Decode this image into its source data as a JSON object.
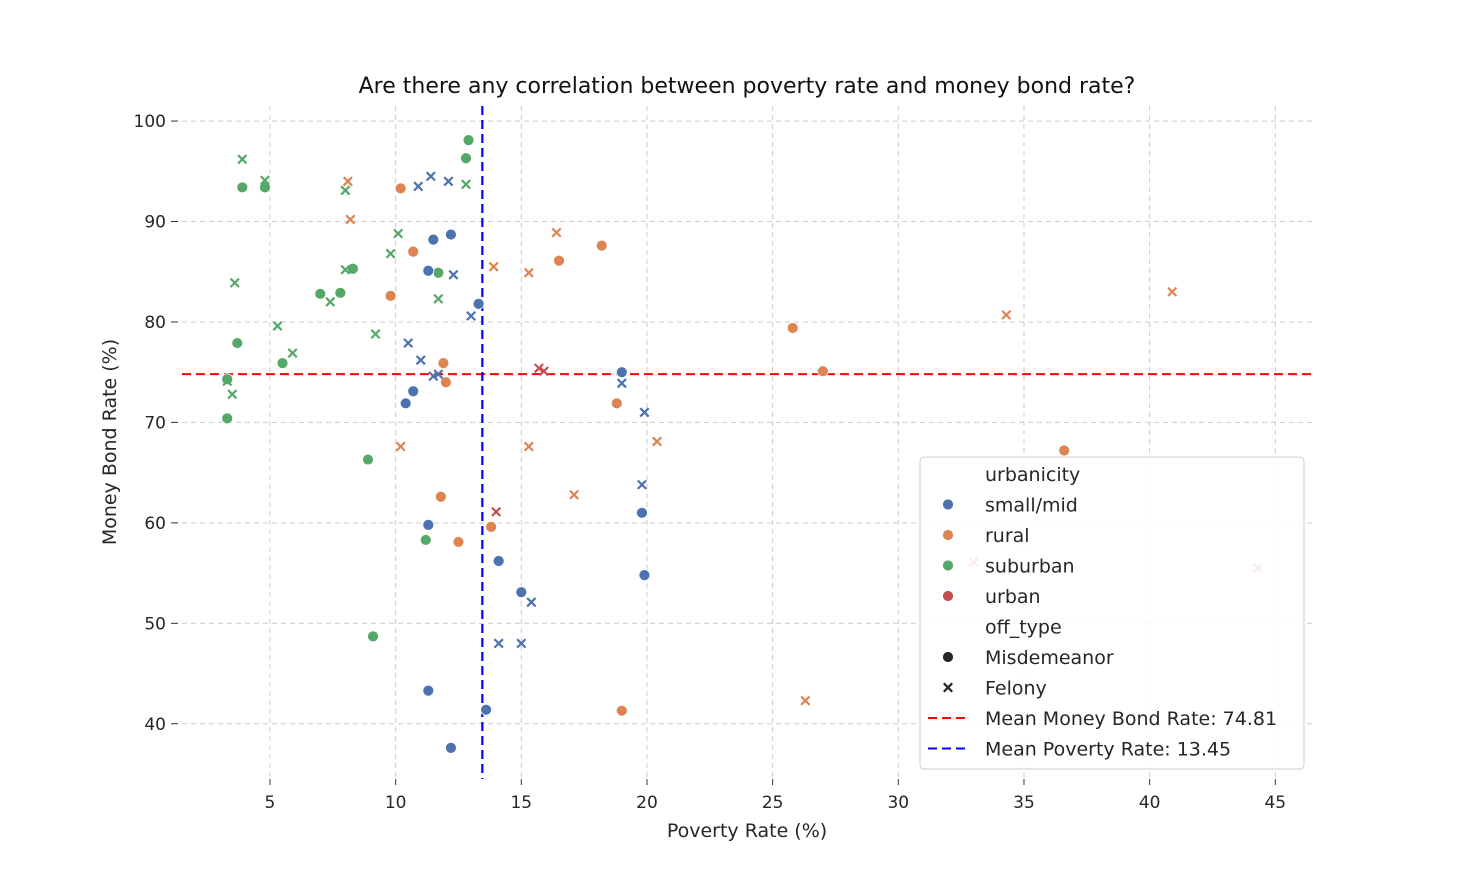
{
  "chart_data": {
    "type": "scatter",
    "title": "Are there any correlation between poverty rate and money bond rate?",
    "xlabel": "Poverty Rate (%)",
    "ylabel": "Money Bond Rate (%)",
    "xlim": [
      1.5,
      46.5
    ],
    "ylim": [
      34.5,
      101.5
    ],
    "xticks": [
      5,
      10,
      15,
      20,
      25,
      30,
      35,
      40,
      45
    ],
    "yticks": [
      40,
      50,
      60,
      70,
      80,
      90,
      100
    ],
    "grid": true,
    "legend_position": "lower-right",
    "hue_title": "urbanicity",
    "style_title": "off_type",
    "hue_colors": {
      "small/mid": "#4c72b0",
      "rural": "#dd8452",
      "suburban": "#55a868",
      "urban": "#c44e52"
    },
    "hue_order": [
      "small/mid",
      "rural",
      "suburban",
      "urban"
    ],
    "styles": [
      {
        "label": "Misdemeanor",
        "marker": "circle"
      },
      {
        "label": "Felony",
        "marker": "x"
      }
    ],
    "reference_lines": [
      {
        "orientation": "horizontal",
        "value": 74.81,
        "color": "#ff0000",
        "label": "Mean Money Bond Rate: 74.81"
      },
      {
        "orientation": "vertical",
        "value": 13.45,
        "color": "#0000ff",
        "label": "Mean Poverty Rate: 13.45"
      }
    ],
    "points": [
      {
        "x": 12.9,
        "y": 98.1,
        "hue": "suburban",
        "style": "circle"
      },
      {
        "x": 12.8,
        "y": 96.3,
        "hue": "suburban",
        "style": "circle"
      },
      {
        "x": 3.9,
        "y": 93.4,
        "hue": "suburban",
        "style": "circle"
      },
      {
        "x": 4.8,
        "y": 93.4,
        "hue": "suburban",
        "style": "circle"
      },
      {
        "x": 8.3,
        "y": 85.3,
        "hue": "suburban",
        "style": "circle"
      },
      {
        "x": 11.7,
        "y": 84.9,
        "hue": "suburban",
        "style": "circle"
      },
      {
        "x": 7.0,
        "y": 82.8,
        "hue": "suburban",
        "style": "circle"
      },
      {
        "x": 7.8,
        "y": 82.9,
        "hue": "suburban",
        "style": "circle"
      },
      {
        "x": 3.7,
        "y": 77.9,
        "hue": "suburban",
        "style": "circle"
      },
      {
        "x": 5.5,
        "y": 75.9,
        "hue": "suburban",
        "style": "circle"
      },
      {
        "x": 3.3,
        "y": 70.4,
        "hue": "suburban",
        "style": "circle"
      },
      {
        "x": 8.9,
        "y": 66.3,
        "hue": "suburban",
        "style": "circle"
      },
      {
        "x": 11.2,
        "y": 58.3,
        "hue": "suburban",
        "style": "circle"
      },
      {
        "x": 9.1,
        "y": 48.7,
        "hue": "suburban",
        "style": "circle"
      },
      {
        "x": 3.3,
        "y": 74.3,
        "hue": "suburban",
        "style": "circle"
      },
      {
        "x": 3.9,
        "y": 96.2,
        "hue": "suburban",
        "style": "x"
      },
      {
        "x": 4.8,
        "y": 94.1,
        "hue": "suburban",
        "style": "x"
      },
      {
        "x": 8.0,
        "y": 93.1,
        "hue": "suburban",
        "style": "x"
      },
      {
        "x": 12.8,
        "y": 93.7,
        "hue": "suburban",
        "style": "x"
      },
      {
        "x": 10.1,
        "y": 88.8,
        "hue": "suburban",
        "style": "x"
      },
      {
        "x": 9.8,
        "y": 86.8,
        "hue": "suburban",
        "style": "x"
      },
      {
        "x": 8.0,
        "y": 85.2,
        "hue": "suburban",
        "style": "x"
      },
      {
        "x": 3.6,
        "y": 83.9,
        "hue": "suburban",
        "style": "x"
      },
      {
        "x": 7.4,
        "y": 82.0,
        "hue": "suburban",
        "style": "x"
      },
      {
        "x": 11.7,
        "y": 82.3,
        "hue": "suburban",
        "style": "x"
      },
      {
        "x": 5.3,
        "y": 79.6,
        "hue": "suburban",
        "style": "x"
      },
      {
        "x": 9.2,
        "y": 78.8,
        "hue": "suburban",
        "style": "x"
      },
      {
        "x": 5.9,
        "y": 76.9,
        "hue": "suburban",
        "style": "x"
      },
      {
        "x": 3.3,
        "y": 74.1,
        "hue": "suburban",
        "style": "x"
      },
      {
        "x": 3.5,
        "y": 72.8,
        "hue": "suburban",
        "style": "x"
      },
      {
        "x": 10.2,
        "y": 93.3,
        "hue": "rural",
        "style": "circle"
      },
      {
        "x": 10.7,
        "y": 87.0,
        "hue": "rural",
        "style": "circle"
      },
      {
        "x": 9.8,
        "y": 82.6,
        "hue": "rural",
        "style": "circle"
      },
      {
        "x": 11.9,
        "y": 75.9,
        "hue": "rural",
        "style": "circle"
      },
      {
        "x": 12.0,
        "y": 74.0,
        "hue": "rural",
        "style": "circle"
      },
      {
        "x": 11.8,
        "y": 62.6,
        "hue": "rural",
        "style": "circle"
      },
      {
        "x": 12.5,
        "y": 58.1,
        "hue": "rural",
        "style": "circle"
      },
      {
        "x": 13.8,
        "y": 59.6,
        "hue": "rural",
        "style": "circle"
      },
      {
        "x": 16.5,
        "y": 86.1,
        "hue": "rural",
        "style": "circle"
      },
      {
        "x": 18.2,
        "y": 87.6,
        "hue": "rural",
        "style": "circle"
      },
      {
        "x": 18.8,
        "y": 71.9,
        "hue": "rural",
        "style": "circle"
      },
      {
        "x": 19.0,
        "y": 41.3,
        "hue": "rural",
        "style": "circle"
      },
      {
        "x": 25.8,
        "y": 79.4,
        "hue": "rural",
        "style": "circle"
      },
      {
        "x": 27.0,
        "y": 75.1,
        "hue": "rural",
        "style": "circle"
      },
      {
        "x": 36.6,
        "y": 67.2,
        "hue": "rural",
        "style": "circle"
      },
      {
        "x": 8.1,
        "y": 94.0,
        "hue": "rural",
        "style": "x"
      },
      {
        "x": 8.2,
        "y": 90.2,
        "hue": "rural",
        "style": "x"
      },
      {
        "x": 10.2,
        "y": 67.6,
        "hue": "rural",
        "style": "x"
      },
      {
        "x": 13.9,
        "y": 85.5,
        "hue": "rural",
        "style": "x"
      },
      {
        "x": 15.3,
        "y": 84.9,
        "hue": "rural",
        "style": "x"
      },
      {
        "x": 16.4,
        "y": 88.9,
        "hue": "rural",
        "style": "x"
      },
      {
        "x": 15.3,
        "y": 67.6,
        "hue": "rural",
        "style": "x"
      },
      {
        "x": 17.1,
        "y": 62.8,
        "hue": "rural",
        "style": "x"
      },
      {
        "x": 20.4,
        "y": 68.1,
        "hue": "rural",
        "style": "x"
      },
      {
        "x": 26.3,
        "y": 42.3,
        "hue": "rural",
        "style": "x"
      },
      {
        "x": 33.0,
        "y": 56.1,
        "hue": "rural",
        "style": "x"
      },
      {
        "x": 34.3,
        "y": 80.7,
        "hue": "rural",
        "style": "x"
      },
      {
        "x": 40.9,
        "y": 83.0,
        "hue": "rural",
        "style": "x"
      },
      {
        "x": 44.3,
        "y": 55.5,
        "hue": "rural",
        "style": "x"
      },
      {
        "x": 11.5,
        "y": 88.2,
        "hue": "small/mid",
        "style": "circle"
      },
      {
        "x": 12.2,
        "y": 88.7,
        "hue": "small/mid",
        "style": "circle"
      },
      {
        "x": 11.3,
        "y": 85.1,
        "hue": "small/mid",
        "style": "circle"
      },
      {
        "x": 13.3,
        "y": 81.8,
        "hue": "small/mid",
        "style": "circle"
      },
      {
        "x": 10.7,
        "y": 73.1,
        "hue": "small/mid",
        "style": "circle"
      },
      {
        "x": 10.4,
        "y": 71.9,
        "hue": "small/mid",
        "style": "circle"
      },
      {
        "x": 11.3,
        "y": 59.8,
        "hue": "small/mid",
        "style": "circle"
      },
      {
        "x": 14.1,
        "y": 56.2,
        "hue": "small/mid",
        "style": "circle"
      },
      {
        "x": 15.0,
        "y": 53.1,
        "hue": "small/mid",
        "style": "circle"
      },
      {
        "x": 11.3,
        "y": 43.3,
        "hue": "small/mid",
        "style": "circle"
      },
      {
        "x": 13.6,
        "y": 41.4,
        "hue": "small/mid",
        "style": "circle"
      },
      {
        "x": 12.2,
        "y": 37.6,
        "hue": "small/mid",
        "style": "circle"
      },
      {
        "x": 19.0,
        "y": 75.0,
        "hue": "small/mid",
        "style": "circle"
      },
      {
        "x": 19.8,
        "y": 61.0,
        "hue": "small/mid",
        "style": "circle"
      },
      {
        "x": 19.9,
        "y": 54.8,
        "hue": "small/mid",
        "style": "circle"
      },
      {
        "x": 10.9,
        "y": 93.5,
        "hue": "small/mid",
        "style": "x"
      },
      {
        "x": 11.4,
        "y": 94.5,
        "hue": "small/mid",
        "style": "x"
      },
      {
        "x": 12.1,
        "y": 94.0,
        "hue": "small/mid",
        "style": "x"
      },
      {
        "x": 12.3,
        "y": 84.7,
        "hue": "small/mid",
        "style": "x"
      },
      {
        "x": 13.0,
        "y": 80.6,
        "hue": "small/mid",
        "style": "x"
      },
      {
        "x": 10.5,
        "y": 77.9,
        "hue": "small/mid",
        "style": "x"
      },
      {
        "x": 11.0,
        "y": 76.2,
        "hue": "small/mid",
        "style": "x"
      },
      {
        "x": 11.5,
        "y": 74.6,
        "hue": "small/mid",
        "style": "x"
      },
      {
        "x": 11.7,
        "y": 74.8,
        "hue": "small/mid",
        "style": "x"
      },
      {
        "x": 19.0,
        "y": 73.9,
        "hue": "small/mid",
        "style": "x"
      },
      {
        "x": 19.9,
        "y": 71.0,
        "hue": "small/mid",
        "style": "x"
      },
      {
        "x": 19.8,
        "y": 63.8,
        "hue": "small/mid",
        "style": "x"
      },
      {
        "x": 15.4,
        "y": 52.1,
        "hue": "small/mid",
        "style": "x"
      },
      {
        "x": 14.1,
        "y": 48.0,
        "hue": "small/mid",
        "style": "x"
      },
      {
        "x": 15.0,
        "y": 48.0,
        "hue": "small/mid",
        "style": "x"
      },
      {
        "x": 14.0,
        "y": 61.1,
        "hue": "urban",
        "style": "x"
      },
      {
        "x": 15.7,
        "y": 75.4,
        "hue": "urban",
        "style": "x"
      },
      {
        "x": 15.9,
        "y": 75.1,
        "hue": "urban",
        "style": "x"
      }
    ]
  }
}
